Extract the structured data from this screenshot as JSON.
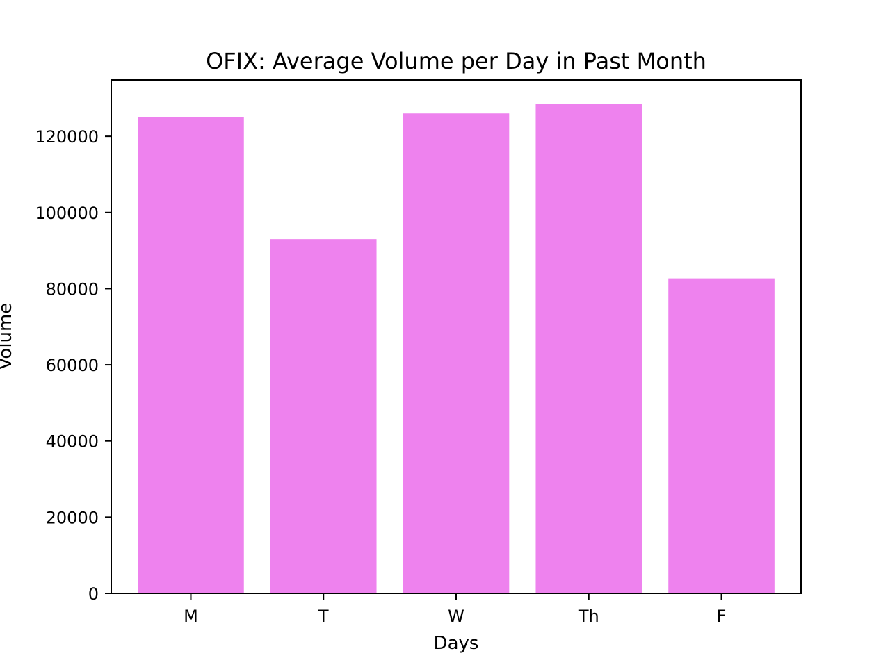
{
  "chart_data": {
    "type": "bar",
    "title": "OFIX: Average Volume per Day in Past Month",
    "xlabel": "Days",
    "ylabel": "Volume",
    "categories": [
      "M",
      "T",
      "W",
      "Th",
      "F"
    ],
    "values": [
      125000,
      93000,
      126000,
      128500,
      82700
    ],
    "ylim": [
      0,
      134800
    ],
    "yticks": [
      0,
      20000,
      40000,
      60000,
      80000,
      100000,
      120000
    ],
    "ytick_labels": [
      "0",
      "20000",
      "40000",
      "60000",
      "80000",
      "100000",
      "120000"
    ],
    "grid": false,
    "legend": "none",
    "bar_color": "#ee82ee"
  }
}
